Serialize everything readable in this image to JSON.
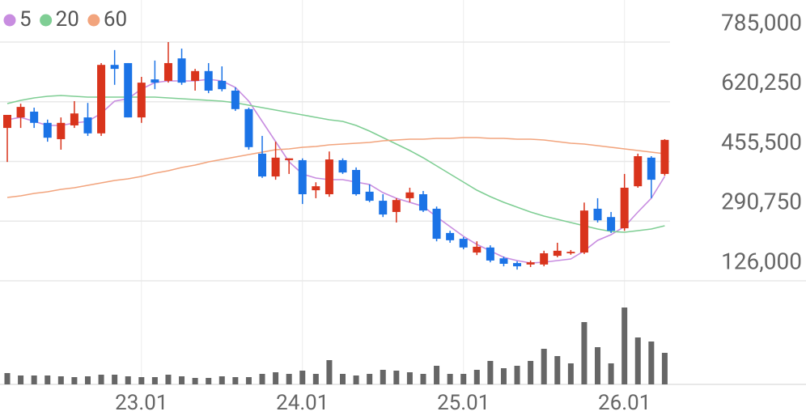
{
  "chart_data": {
    "type": "candlestick",
    "categories": [
      null,
      null,
      null,
      null,
      null,
      null,
      null,
      null,
      null,
      null,
      "23.01",
      null,
      null,
      null,
      null,
      null,
      null,
      null,
      null,
      null,
      null,
      null,
      "24.01",
      null,
      null,
      null,
      null,
      null,
      null,
      null,
      null,
      null,
      null,
      null,
      "25.01",
      null,
      null,
      null,
      null,
      null,
      null,
      null,
      null,
      null,
      null,
      null,
      "26.01",
      null,
      null,
      null
    ],
    "open": [
      548000,
      577000,
      593000,
      562000,
      517000,
      555000,
      577000,
      533000,
      722000,
      727000,
      577000,
      682000,
      678000,
      740000,
      678000,
      705000,
      678000,
      651000,
      600000,
      477000,
      414000,
      459000,
      459000,
      376000,
      365000,
      459000,
      432000,
      372000,
      347000,
      316000,
      354000,
      365000,
      325000,
      258000,
      242000,
      204000,
      218000,
      188000,
      175000,
      171000,
      171000,
      195000,
      202000,
      204000,
      325000,
      302000,
      271000,
      387000,
      466000,
      421000
    ],
    "high": [
      584000,
      615000,
      604000,
      571000,
      577000,
      622000,
      617000,
      727000,
      763000,
      727000,
      689000,
      734000,
      785000,
      767000,
      711000,
      727000,
      718000,
      660000,
      604000,
      526000,
      510000,
      464000,
      464000,
      398000,
      483000,
      464000,
      439000,
      392000,
      365000,
      354000,
      383000,
      374000,
      331000,
      264000,
      247000,
      235000,
      224000,
      193000,
      180000,
      182000,
      209000,
      231000,
      211000,
      342000,
      354000,
      316000,
      421000,
      477000,
      470000,
      517000
    ],
    "low": [
      454000,
      548000,
      548000,
      510000,
      488000,
      548000,
      526000,
      526000,
      667000,
      577000,
      562000,
      655000,
      673000,
      667000,
      651000,
      644000,
      649000,
      595000,
      488000,
      410000,
      405000,
      421000,
      338000,
      354000,
      358000,
      421000,
      361000,
      343000,
      302000,
      287000,
      343000,
      316000,
      235000,
      231000,
      213000,
      197000,
      177000,
      166000,
      157000,
      164000,
      166000,
      191000,
      198000,
      200000,
      287000,
      258000,
      264000,
      383000,
      354000,
      416000
    ],
    "close": [
      584000,
      606000,
      562000,
      521000,
      562000,
      588000,
      533000,
      722000,
      711000,
      577000,
      673000,
      673000,
      727000,
      673000,
      705000,
      651000,
      655000,
      600000,
      495000,
      414000,
      466000,
      464000,
      365000,
      387000,
      461000,
      425000,
      365000,
      347000,
      309000,
      349000,
      370000,
      320000,
      242000,
      238000,
      218000,
      220000,
      182000,
      173000,
      166000,
      177000,
      202000,
      209000,
      206000,
      320000,
      293000,
      264000,
      383000,
      470000,
      405000,
      515000
    ],
    "up_color": "#d9341c",
    "down_color": "#1b73e6",
    "series": [
      {
        "name": "5",
        "color": "#c88de0",
        "values": [
          570500,
          577200,
          566100,
          554900,
          554900,
          561600,
          566100,
          588400,
          621900,
          628600,
          655400,
          673300,
          677800,
          677800,
          677800,
          682200,
          677800,
          659900,
          621900,
          566100,
          510200,
          454400,
          420800,
          409700,
          405200,
          405200,
          398500,
          391800,
          369500,
          353800,
          342700,
          331500,
          302500,
          275600,
          248800,
          226500,
          208600,
          190800,
          181800,
          175100,
          177400,
          181800,
          186300,
          208600,
          237700,
          253300,
          275600,
          315900,
          353800,
          414200
        ]
      },
      {
        "name": "20",
        "color": "#7fce94",
        "values": [
          615200,
          624200,
          630900,
          635300,
          637600,
          635300,
          633100,
          633100,
          633100,
          633100,
          633100,
          633100,
          630900,
          628600,
          626400,
          624200,
          621900,
          617400,
          610700,
          604000,
          597300,
          590600,
          583900,
          577200,
          570500,
          566100,
          554900,
          539300,
          521400,
          503500,
          485600,
          465500,
          443200,
          420900,
          398500,
          376200,
          358300,
          342700,
          329300,
          315900,
          304700,
          295700,
          286800,
          277900,
          268900,
          262200,
          260000,
          264500,
          268900,
          277900
        ]
      },
      {
        "name": "60",
        "color": "#f2a47d",
        "values": [
          356100,
          360500,
          367200,
          371700,
          378400,
          382900,
          389600,
          396300,
          403000,
          407500,
          414200,
          423100,
          429800,
          438800,
          445400,
          454400,
          461100,
          467800,
          474500,
          481200,
          487900,
          490100,
          494600,
          496800,
          501300,
          503500,
          505800,
          508000,
          512500,
          514700,
          516900,
          516900,
          519200,
          519200,
          521400,
          521400,
          519200,
          519200,
          516900,
          516900,
          514700,
          510200,
          505800,
          503500,
          499000,
          494600,
          490100,
          485600,
          481200,
          476700
        ]
      }
    ],
    "volume": [
      14,
      11,
      11,
      11,
      10,
      9,
      10,
      12,
      12,
      10,
      9,
      9,
      12,
      10,
      8,
      8,
      10,
      9,
      9,
      13,
      15,
      13,
      17,
      13,
      30,
      13,
      11,
      13,
      18,
      17,
      15,
      13,
      23,
      13,
      13,
      18,
      29,
      20,
      23,
      29,
      44,
      35,
      26,
      77,
      46,
      26,
      95,
      58,
      53,
      39
    ],
    "volume_color": "#666666",
    "ylim": [
      126000,
      785000
    ],
    "yticks": [
      {
        "value": 126000,
        "label": "126,000"
      },
      {
        "value": 290750,
        "label": "290,750"
      },
      {
        "value": 455500,
        "label": "455,500"
      },
      {
        "value": 620250,
        "label": "620,250"
      },
      {
        "value": 785000,
        "label": "785,000"
      }
    ],
    "volume_ylim": [
      0,
      100
    ],
    "grid": true
  }
}
